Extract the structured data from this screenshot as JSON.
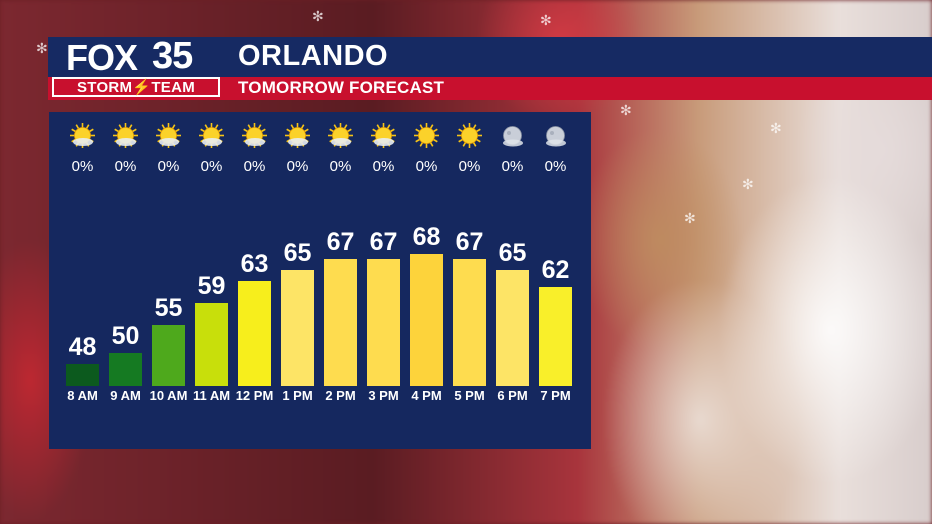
{
  "header": {
    "logo_brand": "FOX",
    "logo_channel": "35",
    "logo_team": "STORM⚡TEAM",
    "title": "ORLANDO",
    "subtitle": "TOMORROW FORECAST"
  },
  "colors": {
    "header_blue": "#162a63",
    "header_red": "#c8102e",
    "panel_blue": "#15285f"
  },
  "chart_data": {
    "type": "bar",
    "categories": [
      "8 AM",
      "9 AM",
      "10 AM",
      "11 AM",
      "12 PM",
      "1 PM",
      "2 PM",
      "3 PM",
      "4 PM",
      "5 PM",
      "6 PM",
      "7 PM"
    ],
    "values": [
      48,
      50,
      55,
      59,
      63,
      65,
      67,
      67,
      68,
      67,
      65,
      62
    ],
    "precip": [
      "0%",
      "0%",
      "0%",
      "0%",
      "0%",
      "0%",
      "0%",
      "0%",
      "0%",
      "0%",
      "0%",
      "0%"
    ],
    "icons": [
      "partly-sunny-icon",
      "partly-sunny-icon",
      "partly-sunny-icon",
      "partly-sunny-icon",
      "partly-sunny-icon",
      "partly-sunny-icon",
      "partly-sunny-icon",
      "partly-sunny-icon",
      "sunny-icon",
      "sunny-icon",
      "moon-icon",
      "moon-icon"
    ],
    "bar_colors": [
      "#0c5a1e",
      "#157a22",
      "#4ea91c",
      "#c8df0b",
      "#f7ee1c",
      "#fde466",
      "#fedc4f",
      "#fedc4f",
      "#fdd33b",
      "#fedc4f",
      "#fde466",
      "#f9ef2a"
    ]
  }
}
